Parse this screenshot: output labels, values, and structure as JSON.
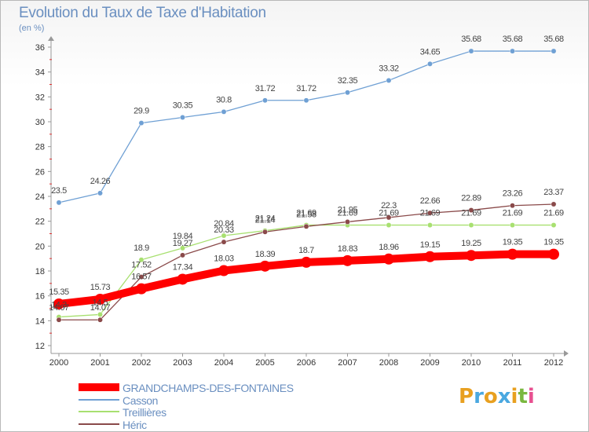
{
  "title": "Evolution du Taux de Taxe d'Habitation",
  "subtitle": "(en %)",
  "logo": {
    "letters": [
      "P",
      "r",
      "o",
      "x",
      "i",
      "t",
      "i"
    ],
    "colors": [
      "#e8a020",
      "#4aa8e0",
      "#e8a020",
      "#4aa8e0",
      "#e8a020",
      "#7ab840",
      "#e85090"
    ]
  },
  "chart_data": {
    "type": "line",
    "x": [
      "2000",
      "2001",
      "2002",
      "2003",
      "2004",
      "2005",
      "2006",
      "2007",
      "2008",
      "2009",
      "2010",
      "2011",
      "2012"
    ],
    "ylim": [
      12,
      36
    ],
    "yticks": [
      12,
      14,
      16,
      18,
      20,
      22,
      24,
      26,
      28,
      30,
      32,
      34,
      36
    ],
    "grid": false,
    "legend_placement": "bottom-left",
    "series": [
      {
        "name": "GRANDCHAMPS-DES-FONTAINES",
        "color": "#ff0000",
        "values": [
          15.35,
          15.73,
          16.57,
          17.34,
          18.03,
          18.39,
          18.7,
          18.83,
          18.96,
          19.15,
          19.25,
          19.35,
          19.35
        ],
        "labels": [
          "15.35",
          "15.73",
          "16.57",
          "17.34",
          "18.03",
          "18.39",
          "18.7",
          "18.83",
          "18.96",
          "19.15",
          "19.25",
          "19.35",
          "19.35"
        ]
      },
      {
        "name": "Casson",
        "color": "#6fa0d4",
        "values": [
          23.5,
          24.26,
          29.9,
          30.35,
          30.8,
          31.72,
          31.72,
          32.35,
          33.32,
          34.65,
          35.68,
          35.68,
          35.68
        ],
        "labels": [
          "23.5",
          "24.26",
          "29.9",
          "30.35",
          "30.8",
          "31.72",
          "31.72",
          "32.35",
          "33.32",
          "34.65",
          "35.68",
          "35.68",
          "35.68"
        ]
      },
      {
        "name": "Treillières",
        "color": "#a8e070",
        "values": [
          14.3,
          14.5,
          18.9,
          19.84,
          20.84,
          21.24,
          21.69,
          21.69,
          21.69,
          21.69,
          21.69,
          21.69,
          21.69
        ],
        "labels": [
          "14.3",
          "14.5",
          "18.9",
          "19.84",
          "20.84",
          "21.24",
          "21.69",
          "21.69",
          "21.69",
          "21.69",
          "21.69",
          "21.69",
          "21.69"
        ]
      },
      {
        "name": "Héric",
        "color": "#8a4a4a",
        "values": [
          14.07,
          14.07,
          17.52,
          19.27,
          20.33,
          21.14,
          21.58,
          21.95,
          22.3,
          22.66,
          22.89,
          23.26,
          23.37
        ],
        "labels": [
          "14.07",
          "14.07",
          "17.52",
          "19.27",
          "20.33",
          "21.14",
          "21.58",
          "21.95",
          "22.3",
          "22.66",
          "22.89",
          "23.26",
          "23.37"
        ]
      }
    ]
  },
  "legend": {
    "items": [
      {
        "label": "GRANDCHAMPS-DES-FONTAINES",
        "color": "#ff0000"
      },
      {
        "label": "Casson",
        "color": "#6fa0d4"
      },
      {
        "label": "Treillières",
        "color": "#a8e070"
      },
      {
        "label": "Héric",
        "color": "#8a4a4a"
      }
    ]
  }
}
